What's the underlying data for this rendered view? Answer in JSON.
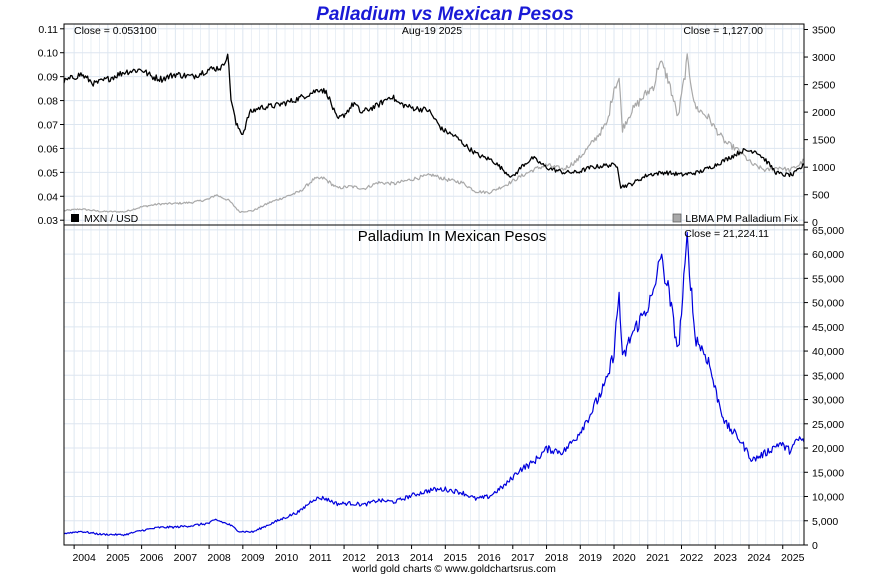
{
  "header": {
    "title": "Palladium vs Mexican Pesos",
    "date": "Aug-19  2025",
    "footer": "world gold charts © www.goldchartsrus.com"
  },
  "colors": {
    "mxn": "#000000",
    "palladium_usd": "#a9a9a9",
    "palladium_mxn": "#0000dd",
    "title": "#1a1ad6",
    "grid": "#dde6f0"
  },
  "top_panel": {
    "close_left": "Close = 0.053100",
    "close_right": "Close = 1,127.00",
    "legend_left": "MXN / USD",
    "legend_right": "LBMA PM Palladium Fix"
  },
  "bottom_panel": {
    "title": "Palladium In Mexican Pesos",
    "close": "Close = 21,224.11"
  },
  "chart_data": [
    {
      "type": "line",
      "panel": "top",
      "title": "Palladium vs Mexican Pesos",
      "x_range": [
        2003.7,
        2025.63
      ],
      "x_ticks": [
        "2004",
        "2005",
        "2006",
        "2007",
        "2008",
        "2009",
        "2010",
        "2011",
        "2012",
        "2013",
        "2014",
        "2015",
        "2016",
        "2017",
        "2018",
        "2019",
        "2020",
        "2021",
        "2022",
        "2023",
        "2024",
        "2025"
      ],
      "y_left_range": [
        0.028,
        0.112
      ],
      "y_left_ticks": [
        "0.03",
        "0.04",
        "0.05",
        "0.06",
        "0.07",
        "0.08",
        "0.09",
        "0.10",
        "0.11"
      ],
      "y_right_range": [
        -50,
        3600
      ],
      "y_right_ticks": [
        "0",
        "500",
        "1000",
        "1500",
        "2000",
        "2500",
        "3000",
        "3500"
      ],
      "grid": true,
      "series": [
        {
          "name": "MXN / USD",
          "axis": "left",
          "x": [
            2003.7,
            2004.2,
            2004.6,
            2005.0,
            2005.5,
            2006.0,
            2006.3,
            2006.6,
            2007.0,
            2007.5,
            2008.0,
            2008.4,
            2008.55,
            2008.65,
            2008.8,
            2009.0,
            2009.2,
            2009.5,
            2010.0,
            2010.5,
            2011.0,
            2011.3,
            2011.5,
            2011.8,
            2012.0,
            2012.3,
            2012.5,
            2013.0,
            2013.4,
            2013.6,
            2014.0,
            2014.5,
            2014.9,
            2015.3,
            2015.7,
            2016.0,
            2016.4,
            2016.8,
            2017.0,
            2017.3,
            2017.6,
            2018.0,
            2018.5,
            2018.9,
            2019.3,
            2019.8,
            2020.1,
            2020.2,
            2020.5,
            2021.0,
            2021.5,
            2022.0,
            2022.5,
            2023.0,
            2023.4,
            2023.8,
            2024.2,
            2024.5,
            2024.8,
            2025.0,
            2025.3,
            2025.63
          ],
          "y": [
            0.088,
            0.091,
            0.087,
            0.089,
            0.092,
            0.093,
            0.09,
            0.089,
            0.091,
            0.09,
            0.093,
            0.094,
            0.1,
            0.081,
            0.07,
            0.066,
            0.075,
            0.077,
            0.078,
            0.08,
            0.083,
            0.085,
            0.083,
            0.072,
            0.074,
            0.079,
            0.075,
            0.078,
            0.082,
            0.079,
            0.077,
            0.076,
            0.068,
            0.065,
            0.06,
            0.057,
            0.055,
            0.05,
            0.048,
            0.053,
            0.056,
            0.052,
            0.05,
            0.05,
            0.052,
            0.053,
            0.053,
            0.044,
            0.045,
            0.049,
            0.05,
            0.049,
            0.05,
            0.053,
            0.056,
            0.059,
            0.059,
            0.055,
            0.05,
            0.049,
            0.049,
            0.0531
          ]
        },
        {
          "name": "LBMA PM Palladium Fix",
          "axis": "right",
          "x": [
            2003.7,
            2004.2,
            2004.8,
            2005.5,
            2006.0,
            2006.5,
            2007.0,
            2007.5,
            2008.0,
            2008.2,
            2008.6,
            2008.9,
            2009.3,
            2009.8,
            2010.3,
            2010.7,
            2011.1,
            2011.4,
            2011.8,
            2012.2,
            2012.6,
            2013.0,
            2013.5,
            2014.0,
            2014.6,
            2015.0,
            2015.5,
            2015.9,
            2016.3,
            2016.8,
            2017.2,
            2017.6,
            2018.0,
            2018.5,
            2018.9,
            2019.3,
            2019.8,
            2020.0,
            2020.15,
            2020.25,
            2020.5,
            2020.9,
            2021.2,
            2021.35,
            2021.6,
            2021.9,
            2022.0,
            2022.17,
            2022.4,
            2022.8,
            2023.0,
            2023.3,
            2023.7,
            2024.1,
            2024.5,
            2024.9,
            2025.2,
            2025.5,
            2025.63
          ],
          "y": [
            210,
            240,
            195,
            190,
            280,
            330,
            340,
            360,
            420,
            500,
            390,
            190,
            210,
            360,
            470,
            560,
            780,
            800,
            620,
            650,
            610,
            720,
            700,
            780,
            860,
            780,
            720,
            560,
            540,
            680,
            820,
            950,
            1040,
            960,
            1120,
            1400,
            1800,
            2450,
            2600,
            1700,
            2000,
            2300,
            2500,
            2950,
            2600,
            1900,
            2300,
            2950,
            2100,
            1900,
            1700,
            1450,
            1300,
            1050,
            940,
            1000,
            940,
            1050,
            1127
          ]
        }
      ]
    },
    {
      "type": "line",
      "panel": "bottom",
      "title": "Palladium In Mexican Pesos",
      "x_range": [
        2003.7,
        2025.63
      ],
      "y_range": [
        0,
        66000
      ],
      "y_ticks": [
        "0",
        "5,000",
        "10,000",
        "15,000",
        "20,000",
        "25,000",
        "30,000",
        "35,000",
        "40,000",
        "45,000",
        "50,000",
        "55,000",
        "60,000",
        "65,000"
      ],
      "grid": true,
      "series": [
        {
          "name": "Palladium In Mexican Pesos",
          "x": [
            2003.7,
            2004.2,
            2004.8,
            2005.5,
            2006.0,
            2006.5,
            2007.0,
            2007.5,
            2008.0,
            2008.2,
            2008.6,
            2008.9,
            2009.3,
            2009.8,
            2010.3,
            2010.7,
            2011.1,
            2011.4,
            2011.8,
            2012.2,
            2012.6,
            2013.0,
            2013.5,
            2014.0,
            2014.6,
            2015.0,
            2015.5,
            2015.9,
            2016.3,
            2016.8,
            2017.2,
            2017.6,
            2018.0,
            2018.5,
            2018.9,
            2019.3,
            2019.8,
            2020.0,
            2020.15,
            2020.25,
            2020.5,
            2020.9,
            2021.2,
            2021.35,
            2021.6,
            2021.9,
            2022.0,
            2022.17,
            2022.4,
            2022.8,
            2023.0,
            2023.3,
            2023.7,
            2024.1,
            2024.5,
            2024.9,
            2025.2,
            2025.5,
            2025.63
          ],
          "y": [
            2400,
            2800,
            2200,
            2100,
            3000,
            3600,
            3700,
            4000,
            4500,
            5200,
            4200,
            2800,
            2700,
            4300,
            5800,
            7000,
            9500,
            9700,
            8500,
            8600,
            8300,
            9200,
            8900,
            10200,
            11400,
            11500,
            10800,
            9500,
            10000,
            12500,
            15500,
            17000,
            19800,
            19200,
            22400,
            27000,
            34000,
            40000,
            52000,
            38000,
            43000,
            48000,
            52000,
            60000,
            53000,
            40000,
            48000,
            63000,
            43000,
            38000,
            32000,
            25000,
            22000,
            17500,
            19000,
            21000,
            19500,
            22000,
            21224.11
          ]
        }
      ]
    }
  ]
}
